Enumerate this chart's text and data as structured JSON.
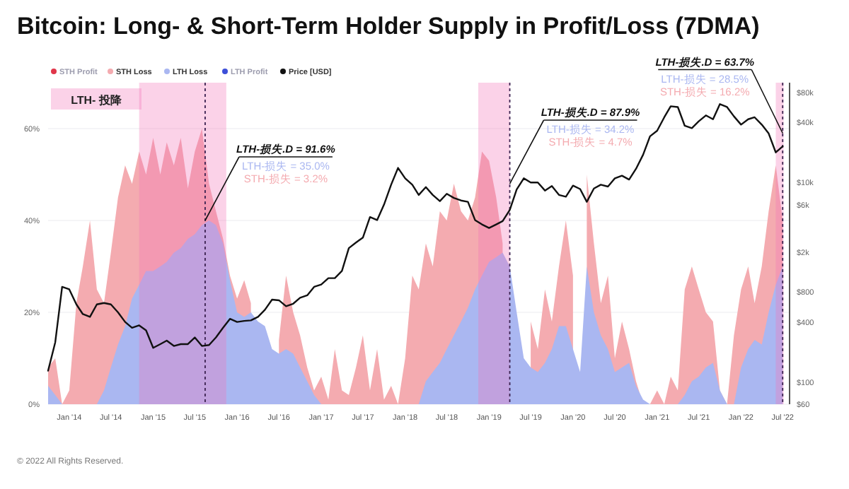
{
  "chart_data": {
    "type": "area",
    "title": "Bitcoin: Long- & Short-Term Holder Supply in Profit/Loss (7DMA)",
    "x": [
      "2013-10",
      "2013-11",
      "2013-12",
      "2014-01",
      "2014-02",
      "2014-03",
      "2014-04",
      "2014-05",
      "2014-06",
      "2014-07",
      "2014-08",
      "2014-09",
      "2014-10",
      "2014-11",
      "2014-12",
      "2015-01",
      "2015-02",
      "2015-03",
      "2015-04",
      "2015-05",
      "2015-06",
      "2015-07",
      "2015-08",
      "2015-09",
      "2015-10",
      "2015-11",
      "2015-12",
      "2016-01",
      "2016-02",
      "2016-03",
      "2016-04",
      "2016-05",
      "2016-06",
      "2016-07",
      "2016-08",
      "2016-09",
      "2016-10",
      "2016-11",
      "2016-12",
      "2017-01",
      "2017-02",
      "2017-03",
      "2017-04",
      "2017-05",
      "2017-06",
      "2017-07",
      "2017-08",
      "2017-09",
      "2017-10",
      "2017-11",
      "2017-12",
      "2018-01",
      "2018-02",
      "2018-03",
      "2018-04",
      "2018-05",
      "2018-06",
      "2018-07",
      "2018-08",
      "2018-09",
      "2018-10",
      "2018-11",
      "2018-12",
      "2019-01",
      "2019-02",
      "2019-03",
      "2019-04",
      "2019-05",
      "2019-06",
      "2019-07",
      "2019-08",
      "2019-09",
      "2019-10",
      "2019-11",
      "2019-12",
      "2020-01",
      "2020-02",
      "2020-03",
      "2020-04",
      "2020-05",
      "2020-06",
      "2020-07",
      "2020-08",
      "2020-09",
      "2020-10",
      "2020-11",
      "2020-12",
      "2021-01",
      "2021-02",
      "2021-03",
      "2021-04",
      "2021-05",
      "2021-06",
      "2021-07",
      "2021-08",
      "2021-09",
      "2021-10",
      "2021-11",
      "2021-12",
      "2022-01",
      "2022-02",
      "2022-03",
      "2022-04",
      "2022-05",
      "2022-06",
      "2022-07"
    ],
    "xlim": [
      "2013-10-01",
      "2022-07-31"
    ],
    "xticks": [
      {
        "value": "2014-01",
        "label": "Jan '14"
      },
      {
        "value": "2014-07",
        "label": "Jul '14"
      },
      {
        "value": "2015-01",
        "label": "Jan '15"
      },
      {
        "value": "2015-07",
        "label": "Jul '15"
      },
      {
        "value": "2016-01",
        "label": "Jan '16"
      },
      {
        "value": "2016-07",
        "label": "Jul '16"
      },
      {
        "value": "2017-01",
        "label": "Jan '17"
      },
      {
        "value": "2017-07",
        "label": "Jul '17"
      },
      {
        "value": "2018-01",
        "label": "Jan '18"
      },
      {
        "value": "2018-07",
        "label": "Jul '18"
      },
      {
        "value": "2019-01",
        "label": "Jan '19"
      },
      {
        "value": "2019-07",
        "label": "Jul '19"
      },
      {
        "value": "2020-01",
        "label": "Jan '20"
      },
      {
        "value": "2020-07",
        "label": "Jul '20"
      },
      {
        "value": "2021-01",
        "label": "Jan '21"
      },
      {
        "value": "2021-07",
        "label": "Jul '21"
      },
      {
        "value": "2022-01",
        "label": "Jan '22"
      },
      {
        "value": "2022-07",
        "label": "Jul '22"
      }
    ],
    "ylim": [
      0,
      70
    ],
    "yticks": [
      {
        "value": 0,
        "label": "0%"
      },
      {
        "value": 20,
        "label": "20%"
      },
      {
        "value": 40,
        "label": "40%"
      },
      {
        "value": 60,
        "label": "60%"
      }
    ],
    "y2lim": [
      60,
      100000
    ],
    "y2ticks": [
      {
        "value": 60,
        "label": "$60"
      },
      {
        "value": 100,
        "label": "$100"
      },
      {
        "value": 400,
        "label": "$400"
      },
      {
        "value": 800,
        "label": "$800"
      },
      {
        "value": 2000,
        "label": "$2k"
      },
      {
        "value": 6000,
        "label": "$6k"
      },
      {
        "value": 10000,
        "label": "$10k"
      },
      {
        "value": 40000,
        "label": "$40k"
      },
      {
        "value": 80000,
        "label": "$80k"
      }
    ],
    "log": "y2",
    "grid": "y",
    "legend": "top left",
    "series": [
      {
        "name": "STH Profit",
        "color": "#e0364a",
        "values": [
          null,
          null,
          null,
          null,
          null,
          null,
          null,
          null,
          null,
          null,
          null,
          null,
          null,
          null,
          null,
          null,
          null,
          null,
          null,
          null,
          null,
          null,
          null,
          null,
          null,
          null,
          null,
          null,
          null,
          null,
          null,
          null,
          null,
          null,
          null,
          null,
          null,
          null,
          null,
          null,
          null,
          null,
          null,
          null,
          null,
          null,
          null,
          null,
          null,
          null,
          null,
          null,
          null,
          null,
          null,
          null,
          null,
          null,
          null,
          null,
          null,
          null,
          null,
          null,
          null,
          null,
          null,
          null,
          null,
          null,
          null,
          null,
          null,
          null,
          null,
          null,
          null,
          null,
          null,
          null,
          null,
          null,
          null,
          null,
          null,
          null,
          null,
          null,
          null,
          null,
          null,
          null,
          null,
          null,
          null,
          null,
          null,
          null,
          null,
          null,
          null,
          null,
          null,
          null,
          null,
          null
        ]
      },
      {
        "name": "STH Loss",
        "color": "#f4abb0",
        "values": [
          8,
          10,
          0,
          3,
          22,
          30,
          40,
          25,
          22,
          33,
          45,
          52,
          48,
          55,
          50,
          58,
          50,
          57,
          52,
          58,
          47,
          55,
          60,
          48,
          42,
          36,
          28,
          23,
          27,
          22,
          null,
          null,
          null,
          14,
          28,
          20,
          15,
          8,
          3,
          6,
          1,
          12,
          3,
          2,
          8,
          15,
          3,
          12,
          1,
          4,
          0,
          10,
          28,
          25,
          35,
          30,
          42,
          40,
          48,
          42,
          40,
          45,
          55,
          53,
          45,
          35,
          null,
          null,
          null,
          18,
          12,
          25,
          18,
          30,
          40,
          28,
          null,
          50,
          35,
          22,
          28,
          10,
          18,
          12,
          5,
          0,
          0,
          3,
          0,
          6,
          3,
          25,
          30,
          25,
          20,
          18,
          3,
          0,
          15,
          25,
          30,
          22,
          30,
          42,
          52,
          40
        ]
      },
      {
        "name": "LTH Loss",
        "color": "#aab7f1",
        "values": [
          4,
          2,
          0,
          0,
          0,
          0,
          0,
          0,
          3,
          8,
          13,
          17,
          23,
          26,
          29,
          29,
          30,
          31,
          33,
          34,
          36,
          37,
          39,
          40,
          39,
          35,
          27,
          20,
          19,
          20,
          18,
          17,
          12,
          11,
          12,
          11,
          8,
          5,
          2,
          0,
          0,
          0,
          0,
          0,
          0,
          0,
          0,
          0,
          0,
          0,
          0,
          0,
          0,
          0,
          5,
          7,
          9,
          12,
          15,
          18,
          21,
          25,
          28,
          31,
          32,
          33,
          30,
          20,
          10,
          8,
          7,
          9,
          12,
          17,
          17,
          12,
          7,
          30,
          20,
          15,
          12,
          7,
          8,
          9,
          4,
          1,
          0,
          0,
          0,
          0,
          0,
          2,
          5,
          6,
          8,
          9,
          3,
          0,
          0,
          8,
          12,
          14,
          13,
          20,
          26,
          30
        ]
      },
      {
        "name": "LTH Profit",
        "color": "#3d4fd8",
        "values": [
          null,
          null,
          null,
          null,
          null,
          null,
          null,
          null,
          null,
          null,
          null,
          null,
          null,
          null,
          null,
          null,
          null,
          null,
          null,
          null,
          null,
          null,
          null,
          null,
          null,
          null,
          null,
          null,
          null,
          null,
          null,
          null,
          null,
          null,
          null,
          null,
          null,
          null,
          null,
          null,
          null,
          null,
          null,
          null,
          null,
          null,
          null,
          null,
          null,
          null,
          null,
          null,
          null,
          null,
          null,
          null,
          null,
          null,
          null,
          null,
          null,
          null,
          null,
          null,
          null,
          null,
          null,
          null,
          null,
          null,
          null,
          null,
          null,
          null,
          null,
          null,
          null,
          null,
          null,
          null,
          null,
          null,
          null,
          null,
          null,
          null,
          null,
          null,
          null,
          null,
          null,
          null,
          null,
          null,
          null,
          null,
          null,
          null,
          null,
          null,
          null,
          null,
          null,
          null,
          null,
          null
        ]
      },
      {
        "name": "Price [USD]",
        "color": "#111111",
        "type": "line",
        "axis": "y2",
        "values": [
          130,
          250,
          900,
          850,
          600,
          480,
          450,
          600,
          620,
          600,
          500,
          400,
          350,
          370,
          330,
          220,
          240,
          260,
          230,
          240,
          240,
          280,
          230,
          235,
          280,
          350,
          430,
          400,
          410,
          415,
          450,
          530,
          670,
          660,
          575,
          610,
          700,
          740,
          900,
          950,
          1100,
          1100,
          1300,
          2200,
          2500,
          2800,
          4500,
          4200,
          6000,
          9500,
          14000,
          11000,
          9500,
          7500,
          9000,
          7500,
          6500,
          7700,
          7000,
          6600,
          6400,
          4200,
          3800,
          3500,
          3800,
          4100,
          5300,
          8500,
          11000,
          10000,
          10000,
          8300,
          9200,
          7500,
          7200,
          9300,
          8600,
          6400,
          8700,
          9500,
          9100,
          11000,
          11700,
          10700,
          13700,
          19000,
          29000,
          33000,
          45000,
          58000,
          57000,
          37000,
          35000,
          41000,
          47000,
          43000,
          61000,
          57000,
          46000,
          38000,
          43000,
          45000,
          38000,
          31000,
          20000,
          23000
        ]
      }
    ],
    "bands": [
      {
        "axis": "x",
        "from": "2014-11-01",
        "to": "2015-11-15",
        "label": "LTH- 投降",
        "color": "#f472b6"
      },
      {
        "axis": "x",
        "from": "2018-11-15",
        "to": "2019-04-01",
        "color": "#f472b6"
      },
      {
        "axis": "x",
        "from": "2022-06-01",
        "to": "2022-07-05",
        "color": "#f472b6"
      }
    ],
    "ref_lines": [
      {
        "axis": "x",
        "value": "2015-08-15",
        "color": "#3b2250",
        "line_style": "dashed"
      },
      {
        "axis": "x",
        "value": "2019-04-01",
        "color": "#3b2250",
        "line_style": "dashed"
      },
      {
        "axis": "x",
        "value": "2022-07-01",
        "color": "#3b2250",
        "line_style": "dashed"
      }
    ],
    "annotations": [
      "© 2022 All Rights Reserved.",
      {
        "text": "LTH-损失.D = 91.6%",
        "x": "2015-08-15",
        "y": 40
      },
      "LTH-损失 = 35.0%",
      "STH-损失 = 3.2%",
      {
        "text": "LTH-损失.D = 87.9%",
        "x": "2019-04-01",
        "y": 48
      },
      "LTH-损失 = 34.2%",
      "STH-损失 = 4.7%",
      {
        "text": "LTH-损失.D = 63.7%",
        "x": "2022-07-01",
        "y": 59
      },
      "LTH-损失 = 28.5%",
      "STH-损失 = 16.2%"
    ]
  }
}
